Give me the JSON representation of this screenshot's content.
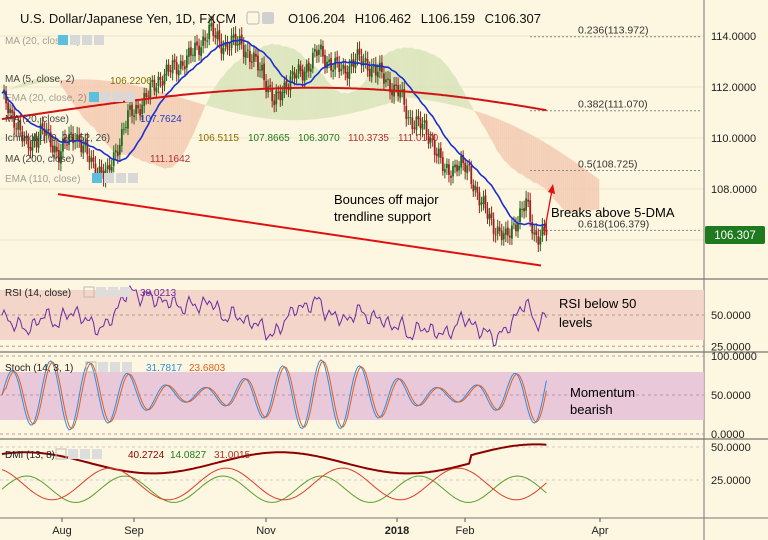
{
  "header": {
    "title": "U.S. Dollar/Japanese Yen, 1D, FXCM",
    "ohlc": [
      {
        "label": "O",
        "value": "106.204"
      },
      {
        "label": "H",
        "value": "106.462"
      },
      {
        "label": "L",
        "value": "106.159"
      },
      {
        "label": "C",
        "value": "106.307"
      }
    ]
  },
  "indicators": {
    "rows": [
      {
        "label": "MA (20, close, 2)",
        "values": []
      },
      {
        "label": "MA (5, close, 2)",
        "values": []
      },
      {
        "label": "MA (5, close)",
        "values": [
          "106.2206"
        ]
      },
      {
        "label": "EMA (20, close, 2)",
        "values": []
      },
      {
        "label": "MA (20, close)",
        "values": [
          "107.7624"
        ]
      },
      {
        "label": "Ichimoku (9, 26, 52, 26)",
        "values": [
          "106.5115",
          "107.8665",
          "106.3070",
          "110.3735",
          "111.0170"
        ]
      },
      {
        "label": "MA (200, close)",
        "values": [
          "111.1642"
        ]
      },
      {
        "label": "EMA (110, close)",
        "values": []
      }
    ],
    "value_colors": [
      "#1f3fbf",
      "#1f3fbf",
      "#8a6d00",
      "#1f7a1f",
      "#1f7a1f",
      "#b03030"
    ]
  },
  "colors": {
    "background": "#fdf6e0",
    "candle_up": "#1f6b1f",
    "candle_down": "#a01f1f",
    "ma5": "#1a2fd0",
    "ma200": "#d01414",
    "trendline": "#e01010",
    "cloud_bull": "#d7e3b8",
    "cloud_bear": "#f3c9b0",
    "rsi_band": "#f2d2c8",
    "rsi_line": "#6a2ca0",
    "stoch_band": "#e6c3d8",
    "stoch_k": "#2f8ee0",
    "stoch_d": "#e0601f",
    "dmi_adx": "#8b0000",
    "dmi_plus": "#5aa02c",
    "dmi_minus": "#e03c2c",
    "price_tag": "#1f7a1f"
  },
  "price_tag": "106.307",
  "chart_data": [
    {
      "type": "candlestick",
      "panel": "price",
      "ylim": [
        105.0,
        115.0
      ],
      "yticks": [
        106.0,
        108.0,
        110.0,
        112.0,
        114.0
      ],
      "ytick_labels": [
        "106.0000",
        "108.0000",
        "110.0000",
        "112.0000",
        "114.0000"
      ],
      "x_ticks": [
        "Aug",
        "Sep",
        "Nov",
        "2018",
        "Feb",
        "Apr"
      ],
      "series": [
        {
          "name": "MA (5, close)",
          "last": 106.2206
        },
        {
          "name": "MA (20, close)",
          "last": 107.7624
        },
        {
          "name": "MA (200, close)",
          "last": 111.1642
        }
      ],
      "fib_levels": [
        {
          "label": "0.236(113.972)",
          "value": 113.972
        },
        {
          "label": "0.382(111.070)",
          "value": 111.07
        },
        {
          "label": "0.5(108.725)",
          "value": 108.725
        },
        {
          "label": "0.618(106.379)",
          "value": 106.379
        }
      ],
      "annotations": [
        {
          "text": "Bounces off major",
          "line": 1
        },
        {
          "text": "trendline support",
          "line": 2
        },
        {
          "text": "Breaks above 5-DMA",
          "line": 1
        }
      ],
      "trendline": [
        [
          0,
          107.8
        ],
        [
          1,
          105.0
        ]
      ]
    },
    {
      "type": "line",
      "panel": "rsi",
      "title": "RSI (14, close)",
      "last_value": "38.0213",
      "ylim": [
        20,
        80
      ],
      "yticks": [
        25,
        50
      ],
      "ytick_labels": [
        "25.0000",
        "50.0000"
      ],
      "band": [
        30,
        70
      ],
      "annotation": [
        "RSI below 50",
        "levels"
      ]
    },
    {
      "type": "line",
      "panel": "stoch",
      "title": "Stoch (14, 3, 1)",
      "values_text": [
        "31.7817",
        "23.6803"
      ],
      "ylim": [
        0,
        100
      ],
      "yticks": [
        0,
        50,
        100
      ],
      "ytick_labels": [
        "0.0000",
        "50.0000",
        "100.0000"
      ],
      "band": [
        20,
        80
      ],
      "annotation": [
        "Momentum",
        "bearish"
      ]
    },
    {
      "type": "line",
      "panel": "dmi",
      "title": "DMI (13, 8)",
      "values_text": [
        "40.2724",
        "14.0827",
        "31.0015"
      ],
      "ylim": [
        5,
        55
      ],
      "yticks": [
        25,
        50
      ],
      "ytick_labels": [
        "25.0000",
        "50.0000"
      ]
    }
  ]
}
